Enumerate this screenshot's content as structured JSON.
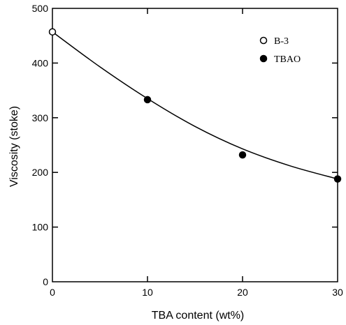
{
  "chart_data": {
    "type": "scatter",
    "title": "",
    "xlabel": "TBA content (wt%)",
    "ylabel": "Viscosity (stoke)",
    "xlim": [
      0,
      30
    ],
    "ylim": [
      0,
      500
    ],
    "xticks": [
      0,
      10,
      20,
      30
    ],
    "yticks": [
      0,
      100,
      200,
      300,
      400,
      500
    ],
    "xtick_labels": [
      "0",
      "10",
      "20",
      "30"
    ],
    "ytick_labels": [
      "0",
      "100",
      "200",
      "300",
      "400",
      "500"
    ],
    "grid": false,
    "legend_position": "top-right",
    "series": [
      {
        "name": "B-3",
        "marker": "open-circle",
        "points": [
          [
            0,
            457
          ]
        ]
      },
      {
        "name": "TBAO",
        "marker": "filled-circle",
        "points": [
          [
            10,
            333
          ],
          [
            20,
            232
          ],
          [
            30,
            188
          ]
        ]
      }
    ],
    "fit_curve": [
      [
        0,
        457
      ],
      [
        5,
        393
      ],
      [
        10,
        335
      ],
      [
        15,
        284
      ],
      [
        20,
        243
      ],
      [
        25,
        212
      ],
      [
        30,
        188
      ]
    ]
  },
  "colors": {
    "ink": "#000000",
    "background": "#ffffff"
  }
}
